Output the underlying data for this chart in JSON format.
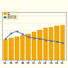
{
  "years": [
    "95",
    "96",
    "97",
    "98",
    "99",
    "00",
    "01",
    "02",
    "03",
    "04",
    "05"
  ],
  "bar_values": [
    55,
    60,
    64,
    67,
    70,
    76,
    82,
    87,
    90,
    93,
    95
  ],
  "line_values": [
    82,
    88,
    90,
    87,
    84,
    83,
    82,
    81,
    80,
    79,
    78
  ],
  "bar_color": "#F5A800",
  "bar_edge_color": "#CC8800",
  "line_color": "#4466AA",
  "line_marker": "s",
  "background_color": "#FFFFF0",
  "legend_label_bar": "道路",
  "legend_label_line": "走行台数万人",
  "bar_ylim": [
    0,
    130
  ],
  "line_ylim": [
    60,
    110
  ],
  "fig_bg": "#FFFFF0",
  "grid_color": "#CCCCCC",
  "legend_bg": "#FFFFCC"
}
